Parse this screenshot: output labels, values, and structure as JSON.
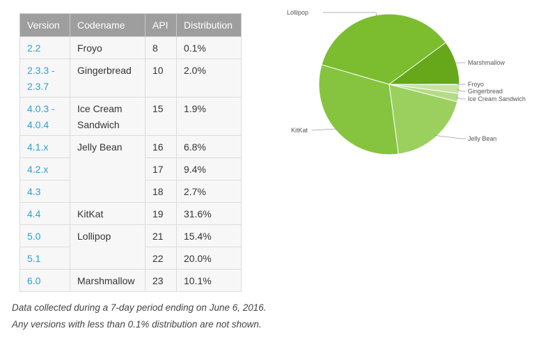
{
  "table": {
    "headers": [
      "Version",
      "Codename",
      "API",
      "Distribution"
    ],
    "rows": [
      {
        "version": "2.2",
        "codename": "Froyo",
        "api": "8",
        "distribution": "0.1%"
      },
      {
        "version": "2.3.3 - 2.3.7",
        "codename": "Gingerbread",
        "api": "10",
        "distribution": "2.0%"
      },
      {
        "version": "4.0.3 - 4.0.4",
        "codename": "Ice Cream Sandwich",
        "api": "15",
        "distribution": "1.9%"
      },
      {
        "version": "4.1.x",
        "codename": "Jelly Bean",
        "api": "16",
        "distribution": "6.8%"
      },
      {
        "version": "4.2.x",
        "codename": "",
        "api": "17",
        "distribution": "9.4%"
      },
      {
        "version": "4.3",
        "codename": "",
        "api": "18",
        "distribution": "2.7%"
      },
      {
        "version": "4.4",
        "codename": "KitKat",
        "api": "19",
        "distribution": "31.6%"
      },
      {
        "version": "5.0",
        "codename": "Lollipop",
        "api": "21",
        "distribution": "15.4%"
      },
      {
        "version": "5.1",
        "codename": "",
        "api": "22",
        "distribution": "20.0%"
      },
      {
        "version": "6.0",
        "codename": "Marshmallow",
        "api": "23",
        "distribution": "10.1%"
      }
    ]
  },
  "captions": {
    "line1": "Data collected during a 7-day period ending on June 6, 2016.",
    "line2": "Any versions with less than 0.1% distribution are not shown."
  },
  "chart_data": {
    "type": "pie",
    "title": "",
    "slices": [
      {
        "label": "Froyo",
        "value": 0.1,
        "color": "#d7ecbd"
      },
      {
        "label": "Gingerbread",
        "value": 2.0,
        "color": "#c6e3a2"
      },
      {
        "label": "Ice Cream Sandwich",
        "value": 1.9,
        "color": "#b6db88"
      },
      {
        "label": "Jelly Bean",
        "value": 18.9,
        "color": "#9bd05f"
      },
      {
        "label": "KitKat",
        "value": 31.6,
        "color": "#86c440"
      },
      {
        "label": "Lollipop",
        "value": 35.4,
        "color": "#7bbd2f"
      },
      {
        "label": "Marshmallow",
        "value": 10.1,
        "color": "#66a81a"
      }
    ]
  }
}
